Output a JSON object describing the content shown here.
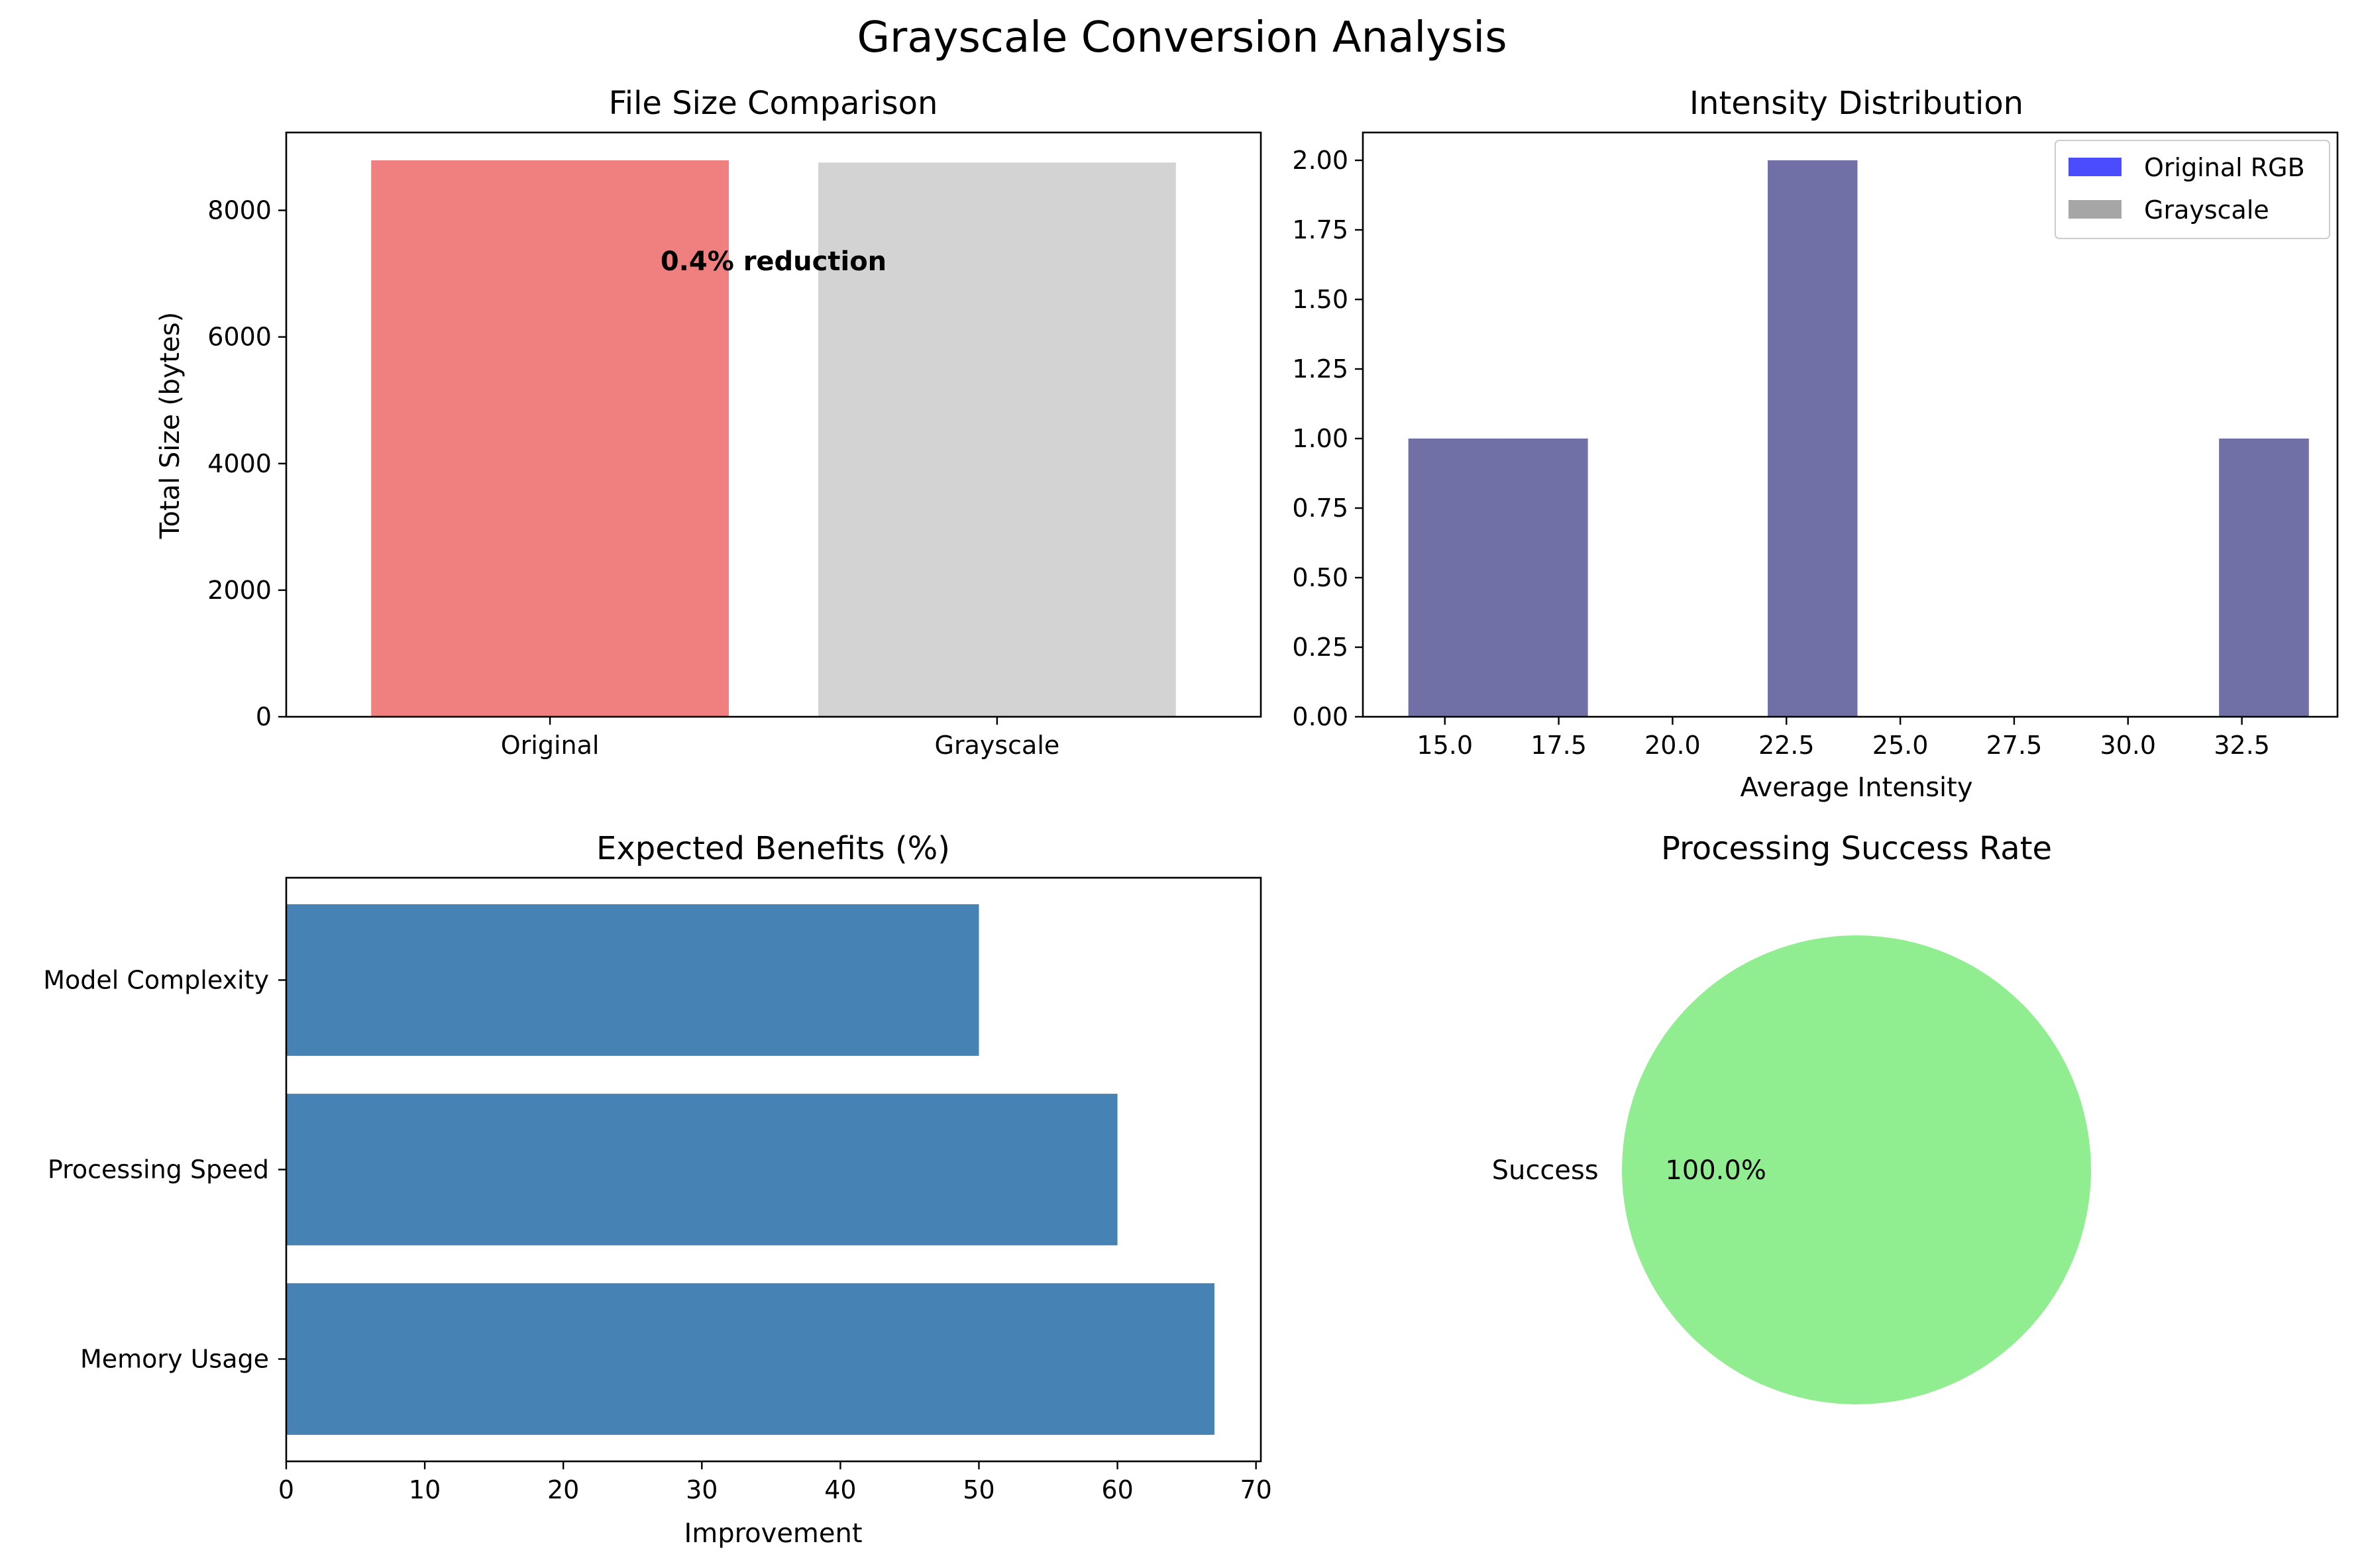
{
  "figure": {
    "title": "Grayscale Conversion Analysis"
  },
  "chart_data": [
    {
      "id": "file-size",
      "type": "bar",
      "title": "File Size Comparison",
      "xlabel": "",
      "ylabel": "Total Size (bytes)",
      "categories": [
        "Original",
        "Grayscale"
      ],
      "values": [
        8790,
        8755
      ],
      "colors": [
        "#f08080",
        "#d3d3d3"
      ],
      "ylim": [
        0,
        9230
      ],
      "yticks": [
        0,
        2000,
        4000,
        6000,
        8000
      ],
      "ytick_labels": [
        "0",
        "2000",
        "4000",
        "6000",
        "8000"
      ],
      "annotation": {
        "text": "0.4% reduction",
        "x": 0.5,
        "y": 7200
      },
      "grid": false
    },
    {
      "id": "intensity",
      "type": "histogram",
      "title": "Intensity Distribution",
      "xlabel": "Average Intensity",
      "ylabel": "",
      "xlim": [
        13.2,
        34.6
      ],
      "ylim": [
        0,
        2.1
      ],
      "xticks": [
        15.0,
        17.5,
        20.0,
        22.5,
        25.0,
        27.5,
        30.0,
        32.5
      ],
      "xtick_labels": [
        "15.0",
        "17.5",
        "20.0",
        "22.5",
        "25.0",
        "27.5",
        "30.0",
        "32.5"
      ],
      "yticks": [
        0,
        0.25,
        0.5,
        0.75,
        1.0,
        1.25,
        1.5,
        1.75,
        2.0
      ],
      "ytick_labels": [
        "0.00",
        "0.25",
        "0.50",
        "0.75",
        "1.00",
        "1.25",
        "1.50",
        "1.75",
        "2.00"
      ],
      "series": [
        {
          "name": "Original RGB",
          "color": "#0000ff",
          "alpha": 0.7,
          "bins": [
            {
              "x0": 14.2,
              "x1": 16.17,
              "count": 1
            },
            {
              "x0": 16.17,
              "x1": 18.14,
              "count": 1
            },
            {
              "x0": 22.09,
              "x1": 24.06,
              "count": 2
            },
            {
              "x0": 32.0,
              "x1": 33.97,
              "count": 1
            }
          ]
        },
        {
          "name": "Grayscale",
          "color": "#808080",
          "alpha": 0.7,
          "bins": [
            {
              "x0": 14.2,
              "x1": 16.17,
              "count": 1
            },
            {
              "x0": 16.17,
              "x1": 18.14,
              "count": 1
            },
            {
              "x0": 22.09,
              "x1": 24.06,
              "count": 2
            },
            {
              "x0": 32.0,
              "x1": 33.97,
              "count": 1
            }
          ]
        }
      ],
      "legend_placement": "top-right",
      "grid": false
    },
    {
      "id": "benefits",
      "type": "barh",
      "title": "Expected Benefits (%)",
      "xlabel": "Improvement",
      "ylabel": "",
      "categories": [
        "Memory Usage",
        "Processing Speed",
        "Model Complexity"
      ],
      "values": [
        67,
        60,
        50
      ],
      "color": "#4682b4",
      "xlim": [
        0,
        70.35
      ],
      "xticks": [
        0,
        10,
        20,
        30,
        40,
        50,
        60,
        70
      ],
      "xtick_labels": [
        "0",
        "10",
        "20",
        "30",
        "40",
        "50",
        "60",
        "70"
      ],
      "grid": false
    },
    {
      "id": "success",
      "type": "pie",
      "title": "Processing Success Rate",
      "labels": [
        "Success"
      ],
      "values": [
        100
      ],
      "colors": [
        "#90ee90"
      ],
      "autopct_labels": [
        "100.0%"
      ]
    }
  ]
}
